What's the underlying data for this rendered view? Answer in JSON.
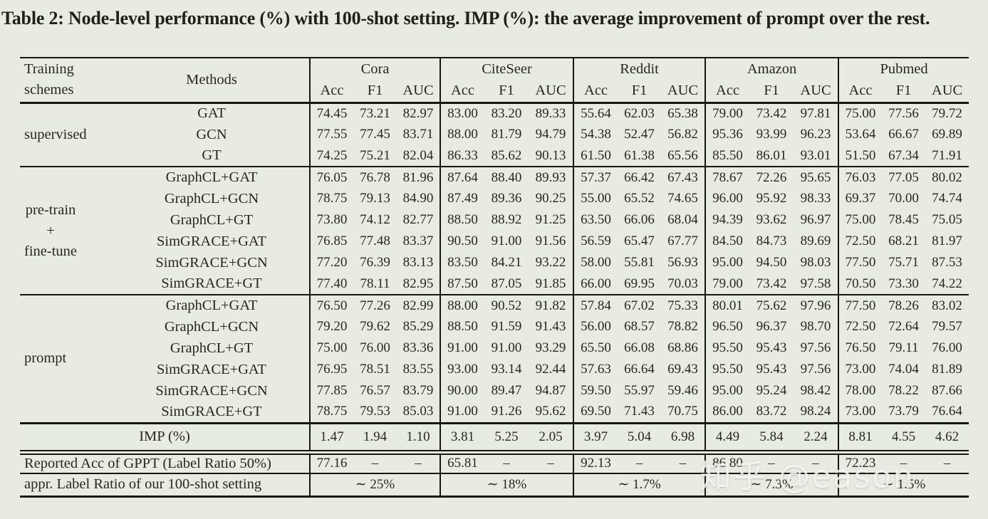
{
  "caption": "Table 2: Node-level performance (%) with 100-shot setting. IMP (%): the average improvement of prompt over the rest.",
  "colors": {
    "background": "#e8ebe2",
    "text": "#29271f",
    "rule": "#17160f",
    "watermark": "rgba(250,252,248,0.82)"
  },
  "header": {
    "training_schemes": [
      "Training",
      "schemes"
    ],
    "methods": "Methods",
    "datasets": [
      "Cora",
      "CiteSeer",
      "Reddit",
      "Amazon",
      "Pubmed"
    ],
    "metric_labels": [
      "Acc",
      "F1",
      "AUC"
    ]
  },
  "sections": [
    {
      "scheme": [
        "supervised"
      ],
      "rows": [
        {
          "method": "GAT",
          "values": [
            "74.45",
            "73.21",
            "82.97",
            "83.00",
            "83.20",
            "89.33",
            "55.64",
            "62.03",
            "65.38",
            "79.00",
            "73.42",
            "97.81",
            "75.00",
            "77.56",
            "79.72"
          ]
        },
        {
          "method": "GCN",
          "values": [
            "77.55",
            "77.45",
            "83.71",
            "88.00",
            "81.79",
            "94.79",
            "54.38",
            "52.47",
            "56.82",
            "95.36",
            "93.99",
            "96.23",
            "53.64",
            "66.67",
            "69.89"
          ]
        },
        {
          "method": "GT",
          "values": [
            "74.25",
            "75.21",
            "82.04",
            "86.33",
            "85.62",
            "90.13",
            "61.50",
            "61.38",
            "65.56",
            "85.50",
            "86.01",
            "93.01",
            "51.50",
            "67.34",
            "71.91"
          ]
        }
      ]
    },
    {
      "scheme": [
        "pre-train",
        "+",
        "fine-tune"
      ],
      "rows": [
        {
          "method": "GraphCL+GAT",
          "values": [
            "76.05",
            "76.78",
            "81.96",
            "87.64",
            "88.40",
            "89.93",
            "57.37",
            "66.42",
            "67.43",
            "78.67",
            "72.26",
            "95.65",
            "76.03",
            "77.05",
            "80.02"
          ]
        },
        {
          "method": "GraphCL+GCN",
          "values": [
            "78.75",
            "79.13",
            "84.90",
            "87.49",
            "89.36",
            "90.25",
            "55.00",
            "65.52",
            "74.65",
            "96.00",
            "95.92",
            "98.33",
            "69.37",
            "70.00",
            "74.74"
          ]
        },
        {
          "method": "GraphCL+GT",
          "values": [
            "73.80",
            "74.12",
            "82.77",
            "88.50",
            "88.92",
            "91.25",
            "63.50",
            "66.06",
            "68.04",
            "94.39",
            "93.62",
            "96.97",
            "75.00",
            "78.45",
            "75.05"
          ]
        },
        {
          "method": "SimGRACE+GAT",
          "values": [
            "76.85",
            "77.48",
            "83.37",
            "90.50",
            "91.00",
            "91.56",
            "56.59",
            "65.47",
            "67.77",
            "84.50",
            "84.73",
            "89.69",
            "72.50",
            "68.21",
            "81.97"
          ]
        },
        {
          "method": "SimGRACE+GCN",
          "values": [
            "77.20",
            "76.39",
            "83.13",
            "83.50",
            "84.21",
            "93.22",
            "58.00",
            "55.81",
            "56.93",
            "95.00",
            "94.50",
            "98.03",
            "77.50",
            "75.71",
            "87.53"
          ]
        },
        {
          "method": "SimGRACE+GT",
          "values": [
            "77.40",
            "78.11",
            "82.95",
            "87.50",
            "87.05",
            "91.85",
            "66.00",
            "69.95",
            "70.03",
            "79.00",
            "73.42",
            "97.58",
            "70.50",
            "73.30",
            "74.22"
          ]
        }
      ]
    },
    {
      "scheme": [
        "prompt"
      ],
      "rows": [
        {
          "method": "GraphCL+GAT",
          "values": [
            "76.50",
            "77.26",
            "82.99",
            "88.00",
            "90.52",
            "91.82",
            "57.84",
            "67.02",
            "75.33",
            "80.01",
            "75.62",
            "97.96",
            "77.50",
            "78.26",
            "83.02"
          ]
        },
        {
          "method": "GraphCL+GCN",
          "values": [
            "79.20",
            "79.62",
            "85.29",
            "88.50",
            "91.59",
            "91.43",
            "56.00",
            "68.57",
            "78.82",
            "96.50",
            "96.37",
            "98.70",
            "72.50",
            "72.64",
            "79.57"
          ]
        },
        {
          "method": "GraphCL+GT",
          "values": [
            "75.00",
            "76.00",
            "83.36",
            "91.00",
            "91.00",
            "93.29",
            "65.50",
            "66.08",
            "68.86",
            "95.50",
            "95.43",
            "97.56",
            "76.50",
            "79.11",
            "76.00"
          ]
        },
        {
          "method": "SimGRACE+GAT",
          "values": [
            "76.95",
            "78.51",
            "83.55",
            "93.00",
            "93.14",
            "92.44",
            "57.63",
            "66.64",
            "69.43",
            "95.50",
            "95.43",
            "97.56",
            "73.00",
            "74.04",
            "81.89"
          ]
        },
        {
          "method": "SimGRACE+GCN",
          "values": [
            "77.85",
            "76.57",
            "83.79",
            "90.00",
            "89.47",
            "94.87",
            "59.50",
            "55.97",
            "59.46",
            "95.00",
            "95.24",
            "98.42",
            "78.00",
            "78.22",
            "87.66"
          ]
        },
        {
          "method": "SimGRACE+GT",
          "values": [
            "78.75",
            "79.53",
            "85.03",
            "91.00",
            "91.26",
            "95.62",
            "69.50",
            "71.43",
            "70.75",
            "86.00",
            "83.72",
            "98.24",
            "73.00",
            "73.79",
            "76.64"
          ]
        }
      ]
    }
  ],
  "imp_row": {
    "label": "IMP (%)",
    "values": [
      "1.47",
      "1.94",
      "1.10",
      "3.81",
      "5.25",
      "2.05",
      "3.97",
      "5.04",
      "6.98",
      "4.49",
      "5.84",
      "2.24",
      "8.81",
      "4.55",
      "4.62"
    ]
  },
  "gppt_row": {
    "label": "Reported Acc of GPPT (Label Ratio 50%)",
    "values": [
      "77.16",
      "–",
      "–",
      "65.81",
      "–",
      "–",
      "92.13",
      "–",
      "–",
      "86.80",
      "–",
      "–",
      "72.23",
      "–",
      "–"
    ]
  },
  "label_ratio_row": {
    "label": "appr. Label Ratio of our 100-shot setting",
    "values": [
      "∼ 25%",
      "∼ 18%",
      "∼ 1.7%",
      "∼ 7.3%",
      "∼ 1.5%"
    ]
  },
  "watermark": "知乎 @eason"
}
